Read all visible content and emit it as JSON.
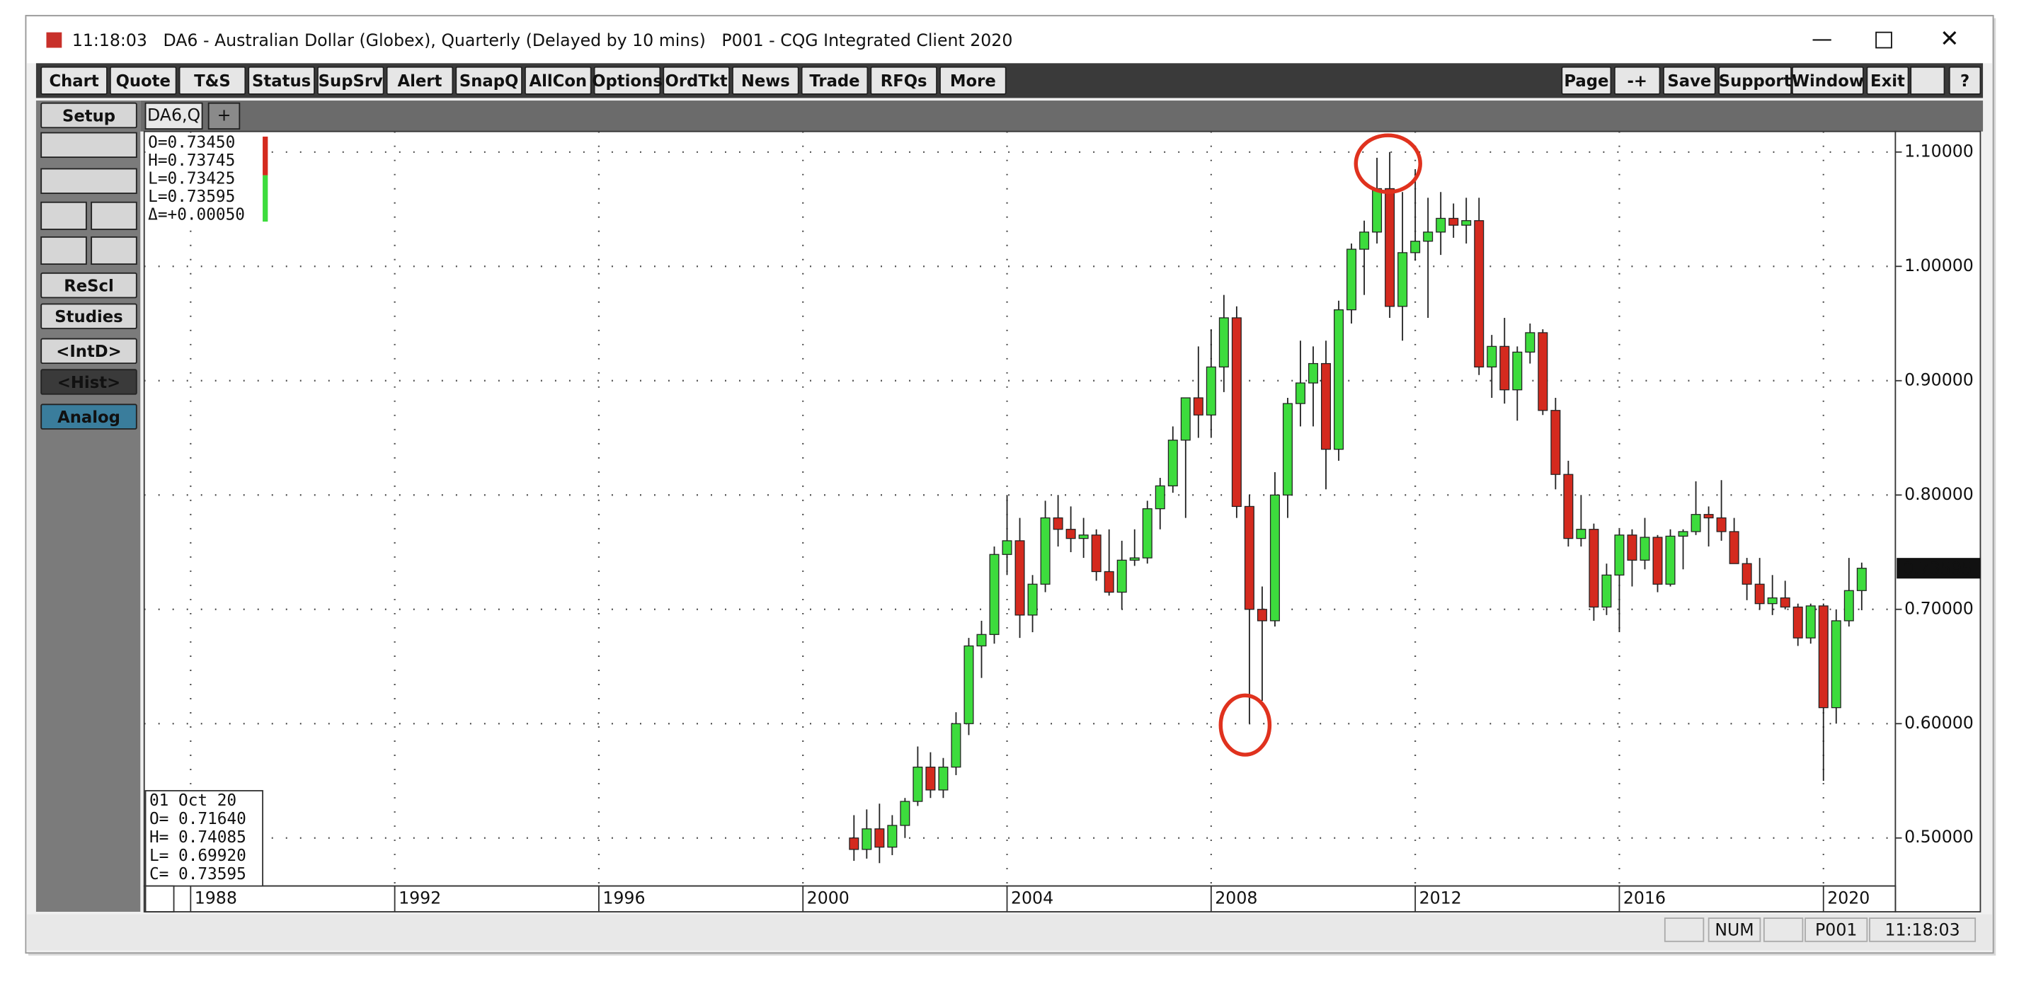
{
  "window": {
    "title": "11:18:03   DA6 - Australian Dollar (Globex), Quarterly (Delayed by 10 mins)   P001 - CQG Integrated Client 2020",
    "menu": [
      "Chart",
      "Quote",
      "T&S",
      "Status",
      "SupSrv",
      "Alert",
      "SnapQ",
      "AllCon",
      "Options",
      "OrdTkt",
      "News",
      "Trade",
      "RFQs",
      "More"
    ],
    "menu_right": [
      "Page",
      "-+",
      "Save",
      "Support",
      "Window",
      "Exit",
      "?"
    ],
    "side": [
      "Setup",
      "ReScl",
      "Studies",
      "<IntD>",
      "<Hist>",
      "Analog"
    ],
    "tabs": [
      "DA6,Q",
      "+"
    ],
    "status": [
      "NUM",
      "P001",
      "11:18:03"
    ],
    "info_top": [
      "O=0.73450",
      "H=0.73745",
      "L=0.73425",
      "L=0.73595",
      "Δ=+0.00050"
    ],
    "info_bottom": [
      "01 Oct 20",
      "O= 0.71640",
      "H= 0.74085",
      "L= 0.69920",
      "C= 0.73595"
    ]
  },
  "chart_data": {
    "type": "candlestick",
    "x": [
      2001,
      2001.25,
      2001.5,
      2001.75,
      2002,
      2002.25,
      2002.5,
      2002.75,
      2003,
      2003.25,
      2003.5,
      2003.75,
      2004,
      2004.25,
      2004.5,
      2004.75,
      2005,
      2005.25,
      2005.5,
      2005.75,
      2006,
      2006.25,
      2006.5,
      2006.75,
      2007,
      2007.25,
      2007.5,
      2007.75,
      2008,
      2008.25,
      2008.5,
      2008.75,
      2009,
      2009.25,
      2009.5,
      2009.75,
      2010,
      2010.25,
      2010.5,
      2010.75,
      2011,
      2011.25,
      2011.5,
      2011.75,
      2012,
      2012.25,
      2012.5,
      2012.75,
      2013,
      2013.25,
      2013.5,
      2013.75,
      2014,
      2014.25,
      2014.5,
      2014.75,
      2015,
      2015.25,
      2015.5,
      2015.75,
      2016,
      2016.25,
      2016.5,
      2016.75,
      2017,
      2017.25,
      2017.5,
      2017.75,
      2018,
      2018.25,
      2018.5,
      2018.75,
      2019,
      2019.25,
      2019.5,
      2019.75,
      2020,
      2020.25,
      2020.5,
      2020.75
    ],
    "open": [
      0.5,
      0.49,
      0.508,
      0.492,
      0.511,
      0.532,
      0.562,
      0.542,
      0.562,
      0.6,
      0.668,
      0.678,
      0.748,
      0.76,
      0.695,
      0.722,
      0.78,
      0.77,
      0.762,
      0.765,
      0.733,
      0.715,
      0.743,
      0.745,
      0.788,
      0.808,
      0.848,
      0.885,
      0.87,
      0.912,
      0.955,
      0.79,
      0.7,
      0.69,
      0.8,
      0.88,
      0.898,
      0.915,
      0.84,
      0.962,
      1.015,
      1.03,
      1.068,
      0.965,
      1.012,
      1.022,
      1.03,
      1.042,
      1.036,
      1.04,
      0.912,
      0.93,
      0.892,
      0.925,
      0.942,
      0.874,
      0.818,
      0.762,
      0.77,
      0.702,
      0.73,
      0.765,
      0.743,
      0.763,
      0.722,
      0.764,
      0.768,
      0.783,
      0.78,
      0.768,
      0.74,
      0.722,
      0.705,
      0.71,
      0.702,
      0.675,
      0.703,
      0.614,
      0.69,
      0.7164
    ],
    "high": [
      0.52,
      0.525,
      0.53,
      0.52,
      0.535,
      0.58,
      0.575,
      0.57,
      0.61,
      0.675,
      0.69,
      0.755,
      0.8,
      0.78,
      0.73,
      0.795,
      0.8,
      0.79,
      0.78,
      0.77,
      0.77,
      0.76,
      0.77,
      0.795,
      0.815,
      0.86,
      0.885,
      0.93,
      0.945,
      0.975,
      0.965,
      0.8,
      0.72,
      0.82,
      0.885,
      0.935,
      0.93,
      0.935,
      0.97,
      1.02,
      1.04,
      1.095,
      1.1,
      1.065,
      1.085,
      1.06,
      1.065,
      1.055,
      1.06,
      1.06,
      0.94,
      0.955,
      0.93,
      0.95,
      0.945,
      0.885,
      0.83,
      0.8,
      0.775,
      0.74,
      0.77,
      0.77,
      0.78,
      0.765,
      0.77,
      0.77,
      0.812,
      0.79,
      0.813,
      0.78,
      0.745,
      0.745,
      0.73,
      0.725,
      0.705,
      0.705,
      0.705,
      0.7,
      0.745,
      0.74085
    ],
    "low": [
      0.48,
      0.482,
      0.478,
      0.485,
      0.5,
      0.528,
      0.535,
      0.535,
      0.555,
      0.59,
      0.64,
      0.67,
      0.73,
      0.675,
      0.68,
      0.715,
      0.755,
      0.75,
      0.745,
      0.725,
      0.712,
      0.7,
      0.738,
      0.74,
      0.77,
      0.802,
      0.78,
      0.85,
      0.85,
      0.89,
      0.78,
      0.6,
      0.62,
      0.685,
      0.78,
      0.86,
      0.86,
      0.805,
      0.83,
      0.95,
      0.975,
      1.02,
      0.955,
      0.935,
      1.005,
      0.955,
      1.01,
      1.025,
      1.02,
      0.905,
      0.885,
      0.88,
      0.865,
      0.915,
      0.87,
      0.805,
      0.755,
      0.755,
      0.69,
      0.695,
      0.68,
      0.72,
      0.735,
      0.715,
      0.72,
      0.735,
      0.765,
      0.755,
      0.76,
      0.74,
      0.708,
      0.7,
      0.695,
      0.7,
      0.668,
      0.67,
      0.55,
      0.6,
      0.685,
      0.6992
    ],
    "close": [
      0.49,
      0.508,
      0.492,
      0.511,
      0.532,
      0.562,
      0.542,
      0.562,
      0.6,
      0.668,
      0.678,
      0.748,
      0.76,
      0.695,
      0.722,
      0.78,
      0.77,
      0.762,
      0.765,
      0.733,
      0.715,
      0.743,
      0.745,
      0.788,
      0.808,
      0.848,
      0.885,
      0.87,
      0.912,
      0.955,
      0.79,
      0.7,
      0.69,
      0.8,
      0.88,
      0.898,
      0.915,
      0.84,
      0.962,
      1.015,
      1.03,
      1.068,
      0.965,
      1.012,
      1.022,
      1.03,
      1.042,
      1.036,
      1.04,
      0.912,
      0.93,
      0.892,
      0.925,
      0.942,
      0.874,
      0.818,
      0.762,
      0.77,
      0.702,
      0.73,
      0.765,
      0.743,
      0.763,
      0.722,
      0.764,
      0.768,
      0.783,
      0.78,
      0.768,
      0.74,
      0.722,
      0.705,
      0.71,
      0.702,
      0.675,
      0.703,
      0.614,
      0.69,
      0.7164,
      0.73595
    ],
    "up_color": "#3ddc3d",
    "down_color": "#d42a1e",
    "xlim": [
      1987.09,
      2021.41
    ],
    "xticks": [
      1988,
      1992,
      1996,
      2000,
      2004,
      2008,
      2012,
      2016,
      2020
    ],
    "ylim": [
      0.458,
      1.118
    ],
    "yticks": [
      {
        "value": 0.5,
        "label": "0.50000"
      },
      {
        "value": 0.6,
        "label": "0.60000"
      },
      {
        "value": 0.7,
        "label": "0.70000"
      },
      {
        "value": 0.8,
        "label": "0.80000"
      },
      {
        "value": 0.9,
        "label": "0.90000"
      },
      {
        "value": 1.0,
        "label": "1.00000"
      },
      {
        "value": 1.1,
        "label": "1.10000"
      }
    ],
    "grid": true
  }
}
